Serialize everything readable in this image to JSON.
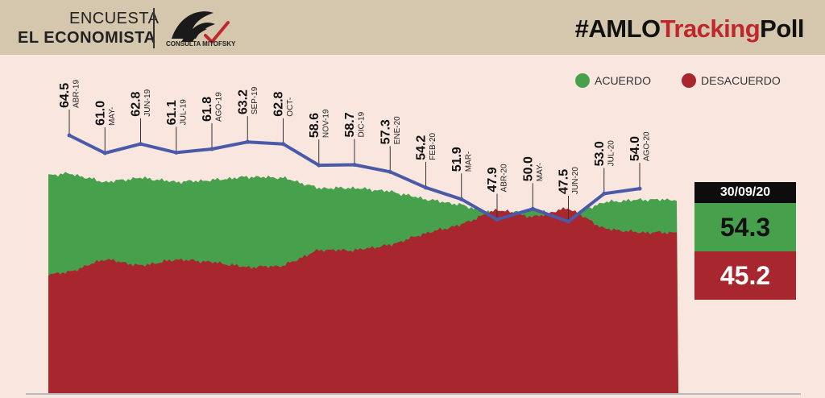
{
  "header": {
    "survey_line1": "ENCUESTA",
    "survey_line2": "EL ECONOMISTA",
    "logo_text": "CONSULTA MITOFSKY",
    "hashtag_part1": "#AMLO",
    "hashtag_part2": "Tracking",
    "hashtag_part3": "Poll"
  },
  "legend": {
    "agree_label": "ACUERDO",
    "disagree_label": "DESACUERDO"
  },
  "summary": {
    "date": "30/09/20",
    "agree_value": "54.3",
    "disagree_value": "45.2"
  },
  "colors": {
    "agree": "#47a14c",
    "disagree": "#a8262e",
    "line": "#4a5aa8",
    "header_bg": "#d5c7ad",
    "background": "#f9e6df",
    "accent": "#c0272d"
  },
  "chart_data": {
    "type": "area",
    "series": [
      {
        "name": "ACUERDO",
        "x": [
          "ABR-19",
          "MAY-",
          "JUN-19",
          "JUL-19",
          "AGO-19",
          "SEP-19",
          "OCT-",
          "NOV-19",
          "DIC-19",
          "ENE-20",
          "FEB-20",
          "MAR-",
          "ABR-20",
          "MAY-",
          "JUN-20",
          "JUL-20",
          "AGO-20"
        ],
        "values": [
          64.5,
          61.0,
          62.8,
          61.1,
          61.8,
          63.2,
          62.8,
          58.6,
          58.7,
          57.3,
          54.2,
          51.9,
          47.9,
          50.0,
          47.5,
          53.0,
          54.0
        ],
        "labels": [
          "64.5",
          "61.0",
          "62.8",
          "61.1",
          "61.8",
          "63.2",
          "62.8",
          "58.6",
          "58.7",
          "57.3",
          "54.2",
          "51.9",
          "47.9",
          "50.0",
          "47.5",
          "53.0",
          "54.0"
        ]
      },
      {
        "name": "DESACUERDO"
      }
    ],
    "summary_date": "30/09/20",
    "latest_agree": 54.3,
    "latest_disagree": 45.2,
    "legend_position": "top-right"
  }
}
